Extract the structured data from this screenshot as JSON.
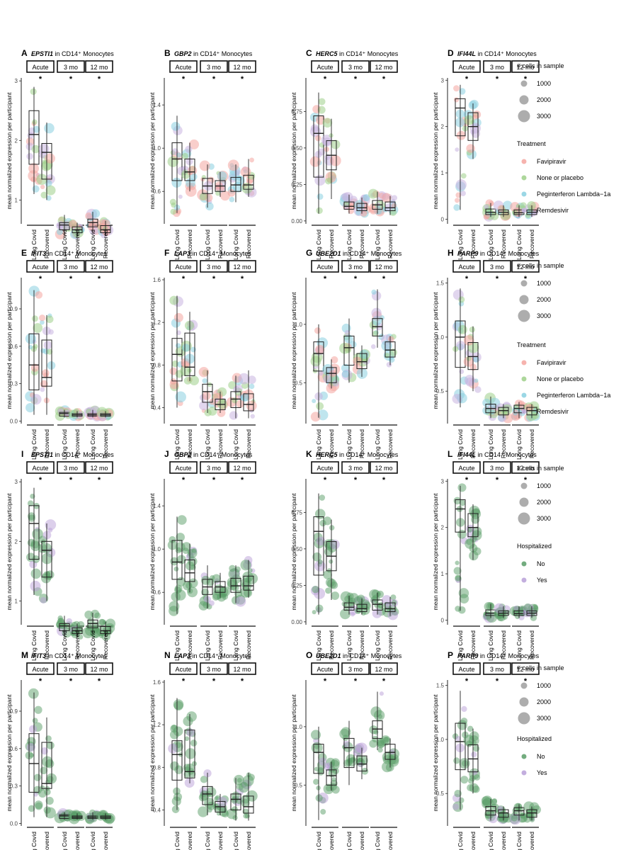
{
  "figure": {
    "group_labels": [
      "Long Covid",
      "Recovered"
    ],
    "strip_labels": [
      "Acute",
      "3 mo",
      "12 mo"
    ],
    "y_axis_label": "mean normalized expression per participant",
    "title_suffix": " in CD14⁺ Monocytes",
    "significance_mark": "*"
  },
  "legends": {
    "size_title": "# cells in sample",
    "size_values": [
      "1000",
      "2000",
      "3000"
    ],
    "treatment_title": "Treatment",
    "treatment_items": [
      "Favipiravir",
      "None or placebo",
      "Peginterferon Lambda−1a",
      "Remdesivir"
    ],
    "hospitalized_title": "Hospitalized",
    "hospitalized_items": [
      "No",
      "Yes"
    ]
  },
  "colors": {
    "favipiravir": "#f4a6a0",
    "none_or_placebo": "#9fd08a",
    "peginterferon": "#8ad0e0",
    "remdesivir": "#c8b4e0",
    "hosp_no": "#5a9e68",
    "hosp_yes": "#b9a0d8",
    "box_line": "#222222",
    "box_fill_hosp": "#1f6b3a"
  },
  "chart_data": [
    {
      "panel": "A",
      "gene": "EPSTI1",
      "color_by": "treatment",
      "type": "box",
      "ylim": [
        0.6,
        3.05
      ],
      "ticks": [
        "1",
        "2",
        "3"
      ],
      "tick_values": [
        1,
        2,
        3
      ],
      "boxes": [
        [
          1.1,
          1.6,
          2.1,
          2.5,
          2.9
        ],
        [
          1.0,
          1.35,
          1.8,
          1.95,
          2.3
        ],
        [
          0.4,
          0.5,
          0.58,
          0.62,
          0.75
        ],
        [
          0.38,
          0.45,
          0.5,
          0.55,
          0.62
        ],
        [
          0.45,
          0.55,
          0.62,
          0.68,
          0.8
        ],
        [
          0.4,
          0.45,
          0.5,
          0.57,
          0.65
        ]
      ]
    },
    {
      "panel": "B",
      "gene": "GBP2",
      "color_by": "treatment",
      "type": "box",
      "ylim": [
        0.3,
        1.65
      ],
      "ticks": [
        "0.6",
        "1.0",
        "1.4"
      ],
      "tick_values": [
        0.6,
        1.0,
        1.4
      ],
      "boxes": [
        [
          0.4,
          0.7,
          0.9,
          1.05,
          1.3
        ],
        [
          0.6,
          0.7,
          0.78,
          0.9,
          1.05
        ],
        [
          0.45,
          0.58,
          0.65,
          0.72,
          0.85
        ],
        [
          0.55,
          0.6,
          0.65,
          0.7,
          0.78
        ],
        [
          0.5,
          0.6,
          0.66,
          0.73,
          0.85
        ],
        [
          0.55,
          0.62,
          0.66,
          0.75,
          0.9
        ]
      ]
    },
    {
      "panel": "C",
      "gene": "HERC5",
      "color_by": "treatment",
      "type": "box",
      "ylim": [
        -0.02,
        0.98
      ],
      "ticks": [
        "0.00",
        "0.25",
        "0.50",
        "0.75"
      ],
      "tick_values": [
        0,
        0.25,
        0.5,
        0.75
      ],
      "boxes": [
        [
          0.05,
          0.3,
          0.6,
          0.72,
          0.88
        ],
        [
          0.15,
          0.35,
          0.45,
          0.55,
          0.7
        ],
        [
          0.05,
          0.08,
          0.1,
          0.13,
          0.18
        ],
        [
          0.05,
          0.07,
          0.09,
          0.12,
          0.16
        ],
        [
          0.05,
          0.08,
          0.11,
          0.14,
          0.2
        ],
        [
          0.04,
          0.07,
          0.09,
          0.13,
          0.17
        ]
      ]
    },
    {
      "panel": "D",
      "gene": "IFI44L",
      "color_by": "treatment",
      "type": "box",
      "ylim": [
        -0.1,
        3.05
      ],
      "ticks": [
        "0",
        "1",
        "2",
        "3"
      ],
      "tick_values": [
        0,
        1,
        2,
        3
      ],
      "boxes": [
        [
          0.2,
          1.8,
          2.4,
          2.6,
          2.9
        ],
        [
          1.3,
          1.7,
          2.0,
          2.3,
          2.5
        ],
        [
          0.05,
          0.1,
          0.15,
          0.22,
          0.35
        ],
        [
          0.05,
          0.1,
          0.15,
          0.2,
          0.3
        ],
        [
          0.05,
          0.1,
          0.14,
          0.2,
          0.3
        ],
        [
          0.05,
          0.1,
          0.15,
          0.2,
          0.3
        ]
      ]
    },
    {
      "panel": "E",
      "gene": "IFIT3",
      "color_by": "treatment",
      "type": "box",
      "ylim": [
        -0.02,
        1.15
      ],
      "ticks": [
        "0.0",
        "0.3",
        "0.6",
        "0.9"
      ],
      "tick_values": [
        0,
        0.3,
        0.6,
        0.9
      ],
      "boxes": [
        [
          0.05,
          0.25,
          0.45,
          0.7,
          1.05
        ],
        [
          0.05,
          0.28,
          0.35,
          0.65,
          0.85
        ],
        [
          0.03,
          0.04,
          0.06,
          0.07,
          0.09
        ],
        [
          0.03,
          0.04,
          0.05,
          0.06,
          0.08
        ],
        [
          0.03,
          0.04,
          0.05,
          0.06,
          0.09
        ],
        [
          0.03,
          0.04,
          0.05,
          0.06,
          0.08
        ]
      ]
    },
    {
      "panel": "F",
      "gene": "LAP3",
      "color_by": "treatment",
      "type": "box",
      "ylim": [
        0.25,
        1.62
      ],
      "ticks": [
        "0.4",
        "0.8",
        "1.2",
        "1.6"
      ],
      "tick_values": [
        0.4,
        0.8,
        1.2,
        1.6
      ],
      "boxes": [
        [
          0.4,
          0.65,
          0.9,
          1.05,
          1.45
        ],
        [
          0.65,
          0.7,
          0.78,
          1.1,
          1.3
        ],
        [
          0.35,
          0.45,
          0.55,
          0.62,
          0.75
        ],
        [
          0.35,
          0.38,
          0.43,
          0.48,
          0.55
        ],
        [
          0.3,
          0.4,
          0.48,
          0.55,
          0.7
        ],
        [
          0.3,
          0.37,
          0.43,
          0.53,
          0.75
        ]
      ]
    },
    {
      "panel": "G",
      "gene": "UBE2D1",
      "color_by": "treatment",
      "type": "box",
      "ylim": [
        0.15,
        1.4
      ],
      "ticks": [
        "0.5",
        "1.0"
      ],
      "tick_values": [
        0.5,
        1.0
      ],
      "boxes": [
        [
          0.2,
          0.6,
          0.75,
          0.85,
          1.0
        ],
        [
          0.45,
          0.5,
          0.58,
          0.63,
          0.7
        ],
        [
          0.5,
          0.65,
          0.8,
          0.9,
          1.05
        ],
        [
          0.55,
          0.62,
          0.68,
          0.75,
          0.82
        ],
        [
          0.8,
          0.9,
          0.98,
          1.05,
          1.3
        ],
        [
          0.65,
          0.72,
          0.78,
          0.85,
          0.9
        ]
      ]
    },
    {
      "panel": "H",
      "gene": "PARP9",
      "color_by": "treatment",
      "type": "box",
      "ylim": [
        0.2,
        1.55
      ],
      "ticks": [
        "0.5",
        "1.0",
        "1.5"
      ],
      "tick_values": [
        0.5,
        1.0,
        1.5
      ],
      "boxes": [
        [
          0.35,
          0.72,
          1.0,
          1.15,
          1.45
        ],
        [
          0.5,
          0.7,
          0.82,
          0.95,
          1.1
        ],
        [
          0.25,
          0.3,
          0.34,
          0.38,
          0.45
        ],
        [
          0.25,
          0.28,
          0.32,
          0.35,
          0.38
        ],
        [
          0.25,
          0.3,
          0.34,
          0.37,
          0.4
        ],
        [
          0.25,
          0.28,
          0.32,
          0.35,
          0.38
        ]
      ]
    },
    {
      "panel": "I",
      "gene": "EPSTI1",
      "color_by": "hospitalized",
      "type": "box",
      "ylim": [
        0.6,
        3.05
      ],
      "ticks": [
        "1",
        "2",
        "3"
      ],
      "tick_values": [
        1,
        2,
        3
      ],
      "boxes": [
        [
          1.1,
          1.7,
          2.3,
          2.6,
          2.9
        ],
        [
          1.0,
          1.4,
          1.85,
          2.0,
          2.3
        ],
        [
          0.4,
          0.5,
          0.58,
          0.62,
          0.75
        ],
        [
          0.38,
          0.45,
          0.5,
          0.55,
          0.62
        ],
        [
          0.45,
          0.55,
          0.62,
          0.68,
          0.8
        ],
        [
          0.4,
          0.45,
          0.5,
          0.57,
          0.65
        ]
      ]
    },
    {
      "panel": "J",
      "gene": "GBP2",
      "color_by": "hospitalized",
      "type": "box",
      "ylim": [
        0.3,
        1.65
      ],
      "ticks": [
        "0.6",
        "1.0",
        "1.4"
      ],
      "tick_values": [
        0.6,
        1.0,
        1.4
      ],
      "boxes": [
        [
          0.4,
          0.72,
          0.88,
          1.08,
          1.3
        ],
        [
          0.6,
          0.7,
          0.78,
          0.9,
          1.05
        ],
        [
          0.45,
          0.58,
          0.65,
          0.72,
          0.85
        ],
        [
          0.55,
          0.6,
          0.65,
          0.7,
          0.78
        ],
        [
          0.5,
          0.6,
          0.66,
          0.73,
          0.85
        ],
        [
          0.55,
          0.62,
          0.66,
          0.75,
          0.9
        ]
      ]
    },
    {
      "panel": "K",
      "gene": "HERC5",
      "color_by": "hospitalized",
      "type": "box",
      "ylim": [
        -0.02,
        0.98
      ],
      "ticks": [
        "0.00",
        "0.25",
        "0.50",
        "0.75"
      ],
      "tick_values": [
        0,
        0.25,
        0.5,
        0.75
      ],
      "boxes": [
        [
          0.05,
          0.32,
          0.62,
          0.72,
          0.88
        ],
        [
          0.15,
          0.35,
          0.45,
          0.55,
          0.7
        ],
        [
          0.05,
          0.08,
          0.1,
          0.13,
          0.18
        ],
        [
          0.05,
          0.07,
          0.09,
          0.12,
          0.16
        ],
        [
          0.05,
          0.08,
          0.12,
          0.15,
          0.2
        ],
        [
          0.04,
          0.07,
          0.09,
          0.13,
          0.17
        ]
      ]
    },
    {
      "panel": "L",
      "gene": "IFI44L",
      "color_by": "hospitalized",
      "type": "box",
      "ylim": [
        -0.1,
        3.05
      ],
      "ticks": [
        "0",
        "1",
        "2",
        "3"
      ],
      "tick_values": [
        0,
        1,
        2,
        3
      ],
      "boxes": [
        [
          0.2,
          1.9,
          2.4,
          2.6,
          2.9
        ],
        [
          1.3,
          1.8,
          2.0,
          2.3,
          2.5
        ],
        [
          0.05,
          0.1,
          0.15,
          0.22,
          0.35
        ],
        [
          0.05,
          0.1,
          0.15,
          0.2,
          0.3
        ],
        [
          0.05,
          0.1,
          0.14,
          0.2,
          0.3
        ],
        [
          0.05,
          0.1,
          0.15,
          0.2,
          0.3
        ]
      ]
    },
    {
      "panel": "M",
      "gene": "IFIT3",
      "color_by": "hospitalized",
      "type": "box",
      "ylim": [
        -0.02,
        1.15
      ],
      "ticks": [
        "0.0",
        "0.3",
        "0.6",
        "0.9"
      ],
      "tick_values": [
        0,
        0.3,
        0.6,
        0.9
      ],
      "boxes": [
        [
          0.05,
          0.25,
          0.48,
          0.72,
          1.05
        ],
        [
          0.05,
          0.28,
          0.32,
          0.65,
          0.85
        ],
        [
          0.03,
          0.04,
          0.06,
          0.07,
          0.09
        ],
        [
          0.03,
          0.04,
          0.05,
          0.06,
          0.08
        ],
        [
          0.03,
          0.04,
          0.05,
          0.06,
          0.09
        ],
        [
          0.03,
          0.04,
          0.05,
          0.06,
          0.08
        ]
      ]
    },
    {
      "panel": "N",
      "gene": "LAP3",
      "color_by": "hospitalized",
      "type": "box",
      "ylim": [
        0.25,
        1.62
      ],
      "ticks": [
        "0.4",
        "0.8",
        "1.2",
        "1.6"
      ],
      "tick_values": [
        0.4,
        0.8,
        1.2,
        1.6
      ],
      "boxes": [
        [
          0.4,
          0.68,
          0.92,
          1.05,
          1.45
        ],
        [
          0.65,
          0.7,
          0.76,
          1.15,
          1.3
        ],
        [
          0.35,
          0.45,
          0.55,
          0.62,
          0.75
        ],
        [
          0.35,
          0.38,
          0.43,
          0.48,
          0.55
        ],
        [
          0.3,
          0.4,
          0.5,
          0.55,
          0.7
        ],
        [
          0.3,
          0.37,
          0.43,
          0.53,
          0.75
        ]
      ]
    },
    {
      "panel": "O",
      "gene": "UBE2D1",
      "color_by": "hospitalized",
      "type": "box",
      "ylim": [
        0.15,
        1.4
      ],
      "ticks": [
        "0.5",
        "1.0"
      ],
      "tick_values": [
        0.5,
        1.0
      ],
      "boxes": [
        [
          0.2,
          0.6,
          0.78,
          0.85,
          1.0
        ],
        [
          0.45,
          0.5,
          0.58,
          0.63,
          0.7
        ],
        [
          0.5,
          0.65,
          0.82,
          0.9,
          1.05
        ],
        [
          0.55,
          0.62,
          0.68,
          0.75,
          0.82
        ],
        [
          0.8,
          0.9,
          0.98,
          1.05,
          1.3
        ],
        [
          0.65,
          0.72,
          0.78,
          0.85,
          0.9
        ]
      ]
    },
    {
      "panel": "P",
      "gene": "PARP9",
      "color_by": "hospitalized",
      "type": "box",
      "ylim": [
        0.2,
        1.55
      ],
      "ticks": [
        "0.5",
        "1.0",
        "1.5"
      ],
      "tick_values": [
        0.5,
        1.0,
        1.5
      ],
      "boxes": [
        [
          0.35,
          0.72,
          0.98,
          1.15,
          1.45
        ],
        [
          0.5,
          0.7,
          0.82,
          0.95,
          1.1
        ],
        [
          0.25,
          0.3,
          0.34,
          0.38,
          0.45
        ],
        [
          0.25,
          0.28,
          0.32,
          0.35,
          0.38
        ],
        [
          0.25,
          0.3,
          0.34,
          0.37,
          0.4
        ],
        [
          0.25,
          0.28,
          0.32,
          0.35,
          0.38
        ]
      ]
    }
  ]
}
